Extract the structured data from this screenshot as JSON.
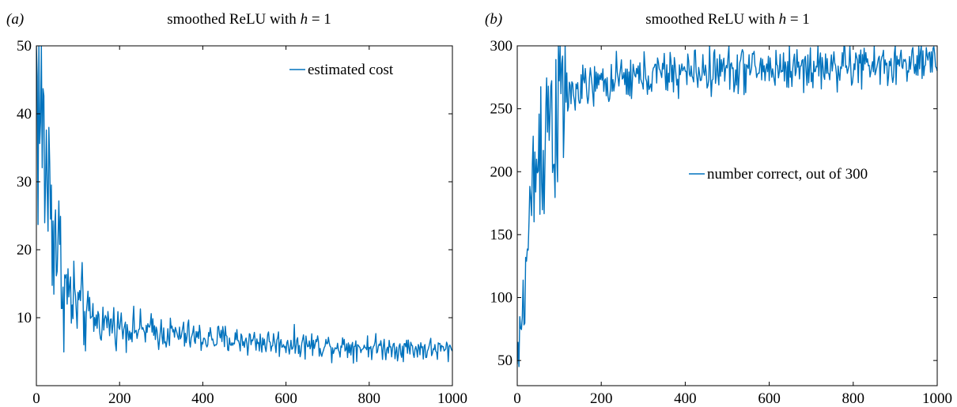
{
  "chart_data": [
    {
      "panel_label": "(a)",
      "type": "line",
      "title": "smoothed ReLU with h = 1",
      "title_prefix": "smoothed ReLU with ",
      "title_var": "h",
      "title_suffix": " = 1",
      "xlim": [
        0,
        1000
      ],
      "ylim": [
        0,
        50
      ],
      "xticks": [
        0,
        200,
        400,
        600,
        800,
        1000
      ],
      "xtick_labels": [
        "0",
        "200",
        "400",
        "600",
        "800",
        "1000"
      ],
      "yticks": [
        10,
        20,
        30,
        40,
        50
      ],
      "ytick_labels": [
        "10",
        "20",
        "30",
        "40",
        "50"
      ],
      "grid": false,
      "legend_position": "top-right",
      "series": [
        {
          "name": "estimated cost",
          "color": "#0072BD",
          "noise": 0.16,
          "x": [
            0,
            5,
            10,
            15,
            20,
            30,
            40,
            50,
            60,
            70,
            80,
            100,
            120,
            150,
            200,
            250,
            300,
            400,
            500,
            600,
            700,
            800,
            900,
            1000
          ],
          "y": [
            49,
            44,
            40,
            36,
            34,
            29,
            25,
            21,
            17,
            14,
            13,
            11.5,
            10.5,
            9.5,
            8.8,
            8.2,
            7.8,
            7.0,
            6.6,
            6.2,
            5.9,
            5.7,
            5.5,
            5.2
          ]
        }
      ]
    },
    {
      "panel_label": "(b)",
      "type": "line",
      "title": "smoothed ReLU with h = 1",
      "title_prefix": "smoothed ReLU with ",
      "title_var": "h",
      "title_suffix": " = 1",
      "xlim": [
        0,
        1000
      ],
      "ylim": [
        30,
        300
      ],
      "xticks": [
        0,
        200,
        400,
        600,
        800,
        1000
      ],
      "xtick_labels": [
        "0",
        "200",
        "400",
        "600",
        "800",
        "1000"
      ],
      "yticks": [
        50,
        100,
        150,
        200,
        250,
        300
      ],
      "ytick_labels": [
        "50",
        "100",
        "150",
        "200",
        "250",
        "300"
      ],
      "grid": false,
      "legend_position": "center-right",
      "series": [
        {
          "name": "number correct, out of 300",
          "color": "#0072BD",
          "noise": 0.06,
          "x": [
            0,
            5,
            10,
            15,
            20,
            25,
            30,
            40,
            50,
            60,
            70,
            80,
            100,
            150,
            200,
            300,
            400,
            500,
            600,
            700,
            800,
            900,
            1000
          ],
          "y": [
            45,
            60,
            80,
            100,
            120,
            140,
            165,
            195,
            215,
            230,
            240,
            248,
            255,
            265,
            270,
            276,
            279,
            281,
            282,
            283,
            284,
            285,
            285
          ]
        }
      ]
    }
  ]
}
